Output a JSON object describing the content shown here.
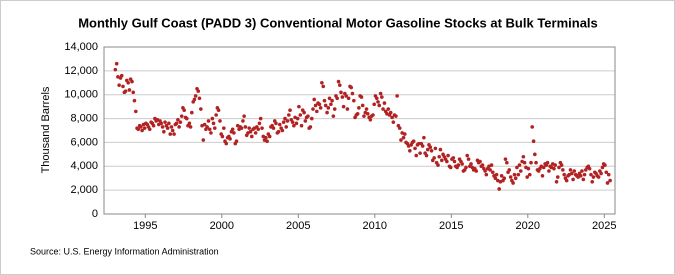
{
  "chart_data": {
    "type": "scatter",
    "title": "Monthly Gulf Coast (PADD 3) Conventional Motor Gasoline Stocks at Bulk Terminals",
    "y_label": "Thousand Barrels",
    "source": "Source: U.S. Energy Information Administration",
    "color": "#b22222",
    "grid": true,
    "xlim": [
      1992.3,
      2025.7
    ],
    "xticks": [
      1995,
      2000,
      2005,
      2010,
      2015,
      2020,
      2025
    ],
    "ylim": [
      0,
      14000
    ],
    "yticks": [
      0,
      {
        "value": 2000,
        "label": "2,000"
      },
      {
        "value": 4000,
        "label": "4,000"
      },
      {
        "value": 6000,
        "label": "6,000"
      },
      {
        "value": 8000,
        "label": "8,000"
      },
      {
        "value": 10000,
        "label": "10,000"
      },
      {
        "value": 12000,
        "label": "12,000"
      },
      {
        "value": 14000,
        "label": "14,000"
      }
    ],
    "x": [
      1993.04,
      1993.13,
      1993.21,
      1993.29,
      1993.38,
      1993.46,
      1993.54,
      1993.63,
      1993.71,
      1993.79,
      1993.88,
      1993.96,
      1994.04,
      1994.13,
      1994.21,
      1994.29,
      1994.38,
      1994.46,
      1994.54,
      1994.63,
      1994.71,
      1994.79,
      1994.88,
      1994.96,
      1995.04,
      1995.13,
      1995.21,
      1995.29,
      1995.38,
      1995.46,
      1995.54,
      1995.63,
      1995.71,
      1995.79,
      1995.88,
      1995.96,
      1996.04,
      1996.13,
      1996.21,
      1996.29,
      1996.38,
      1996.46,
      1996.54,
      1996.63,
      1996.71,
      1996.79,
      1996.88,
      1996.96,
      1997.04,
      1997.13,
      1997.21,
      1997.29,
      1997.38,
      1997.46,
      1997.54,
      1997.63,
      1997.71,
      1997.79,
      1997.88,
      1997.96,
      1998.04,
      1998.13,
      1998.21,
      1998.29,
      1998.38,
      1998.46,
      1998.54,
      1998.63,
      1998.71,
      1998.79,
      1998.88,
      1998.96,
      1999.04,
      1999.13,
      1999.21,
      1999.29,
      1999.38,
      1999.46,
      1999.54,
      1999.63,
      1999.71,
      1999.79,
      1999.88,
      1999.96,
      2000.04,
      2000.13,
      2000.21,
      2000.29,
      2000.38,
      2000.46,
      2000.54,
      2000.63,
      2000.71,
      2000.79,
      2000.88,
      2000.96,
      2001.04,
      2001.13,
      2001.21,
      2001.29,
      2001.38,
      2001.46,
      2001.54,
      2001.63,
      2001.71,
      2001.79,
      2001.88,
      2001.96,
      2002.04,
      2002.13,
      2002.21,
      2002.29,
      2002.38,
      2002.46,
      2002.54,
      2002.63,
      2002.71,
      2002.79,
      2002.88,
      2002.96,
      2003.04,
      2003.13,
      2003.21,
      2003.29,
      2003.38,
      2003.46,
      2003.54,
      2003.63,
      2003.71,
      2003.79,
      2003.88,
      2003.96,
      2004.04,
      2004.13,
      2004.21,
      2004.29,
      2004.38,
      2004.46,
      2004.54,
      2004.63,
      2004.71,
      2004.79,
      2004.88,
      2004.96,
      2005.04,
      2005.13,
      2005.21,
      2005.29,
      2005.38,
      2005.46,
      2005.54,
      2005.63,
      2005.71,
      2005.79,
      2005.88,
      2005.96,
      2006.04,
      2006.13,
      2006.21,
      2006.29,
      2006.38,
      2006.46,
      2006.54,
      2006.63,
      2006.71,
      2006.79,
      2006.88,
      2006.96,
      2007.04,
      2007.13,
      2007.21,
      2007.29,
      2007.38,
      2007.46,
      2007.54,
      2007.63,
      2007.71,
      2007.79,
      2007.88,
      2007.96,
      2008.04,
      2008.13,
      2008.21,
      2008.29,
      2008.38,
      2008.46,
      2008.54,
      2008.63,
      2008.71,
      2008.79,
      2008.88,
      2008.96,
      2009.04,
      2009.13,
      2009.21,
      2009.29,
      2009.38,
      2009.46,
      2009.54,
      2009.63,
      2009.71,
      2009.79,
      2009.88,
      2009.96,
      2010.04,
      2010.13,
      2010.21,
      2010.29,
      2010.38,
      2010.46,
      2010.54,
      2010.63,
      2010.71,
      2010.79,
      2010.88,
      2010.96,
      2011.04,
      2011.13,
      2011.21,
      2011.29,
      2011.38,
      2011.46,
      2011.54,
      2011.63,
      2011.71,
      2011.79,
      2011.88,
      2011.96,
      2012.04,
      2012.13,
      2012.21,
      2012.29,
      2012.38,
      2012.46,
      2012.54,
      2012.63,
      2012.71,
      2012.79,
      2012.88,
      2012.96,
      2013.04,
      2013.13,
      2013.21,
      2013.29,
      2013.38,
      2013.46,
      2013.54,
      2013.63,
      2013.71,
      2013.79,
      2013.88,
      2013.96,
      2014.04,
      2014.13,
      2014.21,
      2014.29,
      2014.38,
      2014.46,
      2014.54,
      2014.63,
      2014.71,
      2014.79,
      2014.88,
      2014.96,
      2015.04,
      2015.13,
      2015.21,
      2015.29,
      2015.38,
      2015.46,
      2015.54,
      2015.63,
      2015.71,
      2015.79,
      2015.88,
      2015.96,
      2016.04,
      2016.13,
      2016.21,
      2016.29,
      2016.38,
      2016.46,
      2016.54,
      2016.63,
      2016.71,
      2016.79,
      2016.88,
      2016.96,
      2017.04,
      2017.13,
      2017.21,
      2017.29,
      2017.38,
      2017.46,
      2017.54,
      2017.63,
      2017.71,
      2017.79,
      2017.88,
      2017.96,
      2018.04,
      2018.13,
      2018.21,
      2018.29,
      2018.38,
      2018.46,
      2018.54,
      2018.63,
      2018.71,
      2018.79,
      2018.88,
      2018.96,
      2019.04,
      2019.13,
      2019.21,
      2019.29,
      2019.38,
      2019.46,
      2019.54,
      2019.63,
      2019.71,
      2019.79,
      2019.88,
      2019.96,
      2020.04,
      2020.13,
      2020.21,
      2020.29,
      2020.38,
      2020.46,
      2020.54,
      2020.63,
      2020.71,
      2020.79,
      2020.88,
      2020.96,
      2021.04,
      2021.13,
      2021.21,
      2021.29,
      2021.38,
      2021.46,
      2021.54,
      2021.63,
      2021.71,
      2021.79,
      2021.88,
      2021.96,
      2022.04,
      2022.13,
      2022.21,
      2022.29,
      2022.38,
      2022.46,
      2022.54,
      2022.63,
      2022.71,
      2022.79,
      2022.88,
      2022.96,
      2023.04,
      2023.13,
      2023.21,
      2023.29,
      2023.38,
      2023.46,
      2023.54,
      2023.63,
      2023.71,
      2023.79,
      2023.88,
      2023.96,
      2024.04,
      2024.13,
      2024.21,
      2024.29,
      2024.38,
      2024.46,
      2024.54,
      2024.63,
      2024.71,
      2024.79,
      2024.88,
      2024.96,
      2025.04,
      2025.13,
      2025.21,
      2025.29,
      2025.38
    ],
    "values": [
      12100,
      12600,
      11500,
      10800,
      11400,
      11600,
      10700,
      10200,
      10300,
      11200,
      11000,
      10400,
      11300,
      11100,
      10200,
      9500,
      8600,
      7200,
      7100,
      7400,
      7300,
      7000,
      7500,
      7200,
      7600,
      7500,
      7300,
      7100,
      7700,
      7600,
      7400,
      8000,
      7800,
      7900,
      7500,
      7800,
      7600,
      7300,
      6900,
      7700,
      7400,
      7200,
      7600,
      6700,
      7300,
      7000,
      6700,
      7500,
      7600,
      7900,
      7300,
      7700,
      8200,
      8900,
      8700,
      8100,
      8000,
      7400,
      7600,
      7300,
      8500,
      9400,
      9600,
      9900,
      10500,
      10300,
      9700,
      8800,
      7400,
      6200,
      7500,
      7100,
      7300,
      7800,
      7100,
      6800,
      8000,
      7600,
      7200,
      8300,
      8900,
      8700,
      7800,
      6700,
      6500,
      7200,
      6100,
      5900,
      6400,
      6500,
      6300,
      6900,
      7100,
      6800,
      5900,
      6100,
      7400,
      7100,
      7300,
      7200,
      7800,
      8200,
      7300,
      6600,
      6800,
      7200,
      6900,
      6500,
      7100,
      7200,
      6800,
      7300,
      7100,
      7600,
      8000,
      7200,
      6500,
      6200,
      6400,
      6100,
      6700,
      6500,
      7300,
      7400,
      7200,
      7800,
      7600,
      6800,
      6900,
      7500,
      7200,
      7000,
      7700,
      8000,
      7300,
      7800,
      8300,
      8700,
      7900,
      7700,
      7400,
      8100,
      7600,
      8000,
      9000,
      8300,
      7400,
      8700,
      8500,
      7800,
      8100,
      8200,
      7200,
      7300,
      8000,
      8800,
      9600,
      9100,
      8600,
      9300,
      9200,
      8900,
      11000,
      10700,
      9500,
      9100,
      8500,
      8900,
      9700,
      9200,
      9500,
      8200,
      8800,
      9900,
      9700,
      11100,
      10800,
      10200,
      9800,
      9000,
      10100,
      9900,
      8800,
      9700,
      10700,
      10600,
      10100,
      9500,
      8100,
      8300,
      8400,
      8900,
      9900,
      9800,
      9100,
      8200,
      8500,
      8800,
      8400,
      8100,
      7900,
      8200,
      8300,
      9200,
      9900,
      9700,
      9400,
      9100,
      10100,
      9800,
      8800,
      9300,
      8600,
      8400,
      8800,
      8300,
      8500,
      8100,
      7700,
      8300,
      8200,
      9900,
      7400,
      7200,
      6200,
      6800,
      6400,
      6700,
      6000,
      5900,
      5700,
      5300,
      5800,
      6000,
      6100,
      5500,
      4900,
      5800,
      5900,
      5100,
      5900,
      5700,
      6400,
      5100,
      4900,
      5400,
      5800,
      5600,
      5300,
      4500,
      4700,
      5500,
      4300,
      4100,
      4800,
      5400,
      4500,
      5000,
      4800,
      4600,
      4400,
      4900,
      4000,
      3900,
      4600,
      4700,
      4400,
      4000,
      3900,
      4100,
      4600,
      4400,
      4200,
      3600,
      3700,
      3900,
      4900,
      4600,
      4000,
      4200,
      3900,
      3700,
      3800,
      3600,
      4500,
      4300,
      4400,
      4000,
      4100,
      3800,
      3600,
      3300,
      3800,
      4000,
      3700,
      4100,
      3500,
      3200,
      3000,
      3300,
      2800,
      2100,
      2700,
      3200,
      2800,
      3000,
      4600,
      4300,
      3500,
      3700,
      3100,
      2800,
      2600,
      3300,
      3000,
      3900,
      3300,
      4100,
      3600,
      4400,
      4800,
      4300,
      3900,
      3100,
      3800,
      3300,
      4300,
      7300,
      6100,
      5000,
      4300,
      3700,
      3600,
      3800,
      4000,
      3200,
      3900,
      4200,
      4100,
      4300,
      3600,
      4000,
      3900,
      4200,
      3800,
      4100,
      2700,
      3100,
      3900,
      4300,
      4100,
      3700,
      3300,
      3000,
      2800,
      3200,
      3300,
      3700,
      3400,
      2900,
      3600,
      3300,
      3200,
      3100,
      3400,
      3200,
      3600,
      2900,
      3300,
      3700,
      3900,
      4000,
      3800,
      3300,
      2700,
      3100,
      3500,
      3400,
      3200,
      3100,
      3600,
      3400,
      3900,
      4200,
      4100,
      3500,
      2600,
      3300,
      2800
    ]
  }
}
